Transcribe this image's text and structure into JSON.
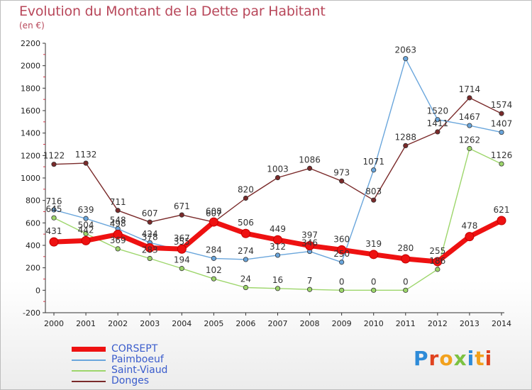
{
  "header": {
    "title": "Evolution du Montant de la Dette par Habitant",
    "subtitle": "(en €)"
  },
  "logo": {
    "text": "Proxiti",
    "letter_colors": [
      "#2e8bd8",
      "#e0431f",
      "#f2a11d",
      "#7cc242",
      "#2e8bd8",
      "#f2a11d",
      "#e0431f"
    ]
  },
  "chart_data": {
    "type": "line",
    "title": "Evolution du Montant de la Dette par Habitant",
    "subtitle": "(en €)",
    "x": [
      2000,
      2001,
      2002,
      2003,
      2004,
      2005,
      2006,
      2007,
      2008,
      2009,
      2010,
      2011,
      2012,
      2013,
      2014
    ],
    "ylim": [
      -200,
      2200
    ],
    "yticks": [
      -200,
      0,
      200,
      400,
      600,
      800,
      1000,
      1200,
      1400,
      1600,
      1800,
      2000,
      2200
    ],
    "grid": false,
    "legend_position": "bottom-left",
    "series": [
      {
        "name": "CORSEPT",
        "color": "#ee1111",
        "values": [
          431,
          442,
          498,
          378,
          367,
          608,
          506,
          449,
          397,
          360,
          319,
          280,
          255,
          478,
          621
        ]
      },
      {
        "name": "Paimboeuf",
        "color": "#6aa6dc",
        "values": [
          716,
          639,
          548,
          424,
          355,
          284,
          274,
          312,
          346,
          250,
          1071,
          2063,
          1520,
          1467,
          1407
        ]
      },
      {
        "name": "Saint-Viaud",
        "color": "#9dd66b",
        "values": [
          645,
          504,
          369,
          283,
          194,
          102,
          24,
          16,
          7,
          0,
          0,
          0,
          186,
          1262,
          1126
        ]
      },
      {
        "name": "Donges",
        "color": "#7a2a2a",
        "values": [
          1122,
          1132,
          711,
          607,
          671,
          607,
          820,
          1003,
          1086,
          973,
          803,
          1288,
          1411,
          1714,
          1574
        ]
      }
    ]
  }
}
